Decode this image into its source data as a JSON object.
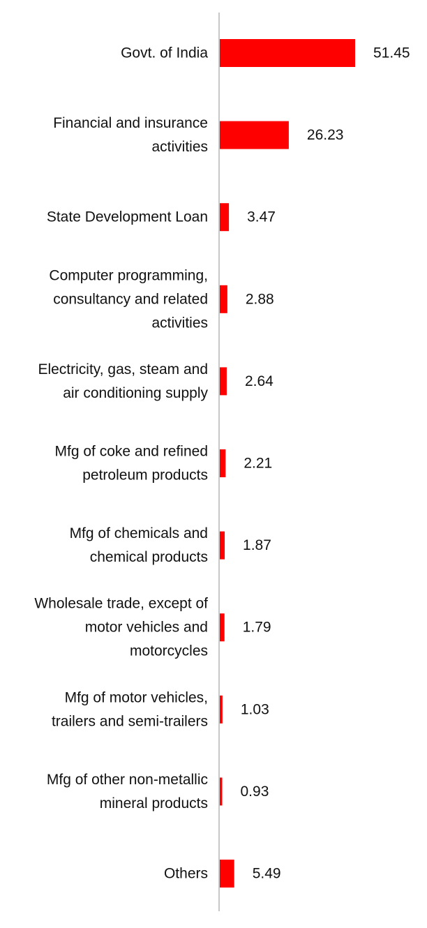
{
  "chart_data": {
    "type": "bar",
    "orientation": "horizontal",
    "categories": [
      "Govt. of India",
      "Financial and insurance activities",
      "State Development Loan",
      "Computer programming, consultancy and related activities",
      "Electricity, gas, steam and air conditioning supply",
      "Mfg of coke and refined petroleum products",
      "Mfg of chemicals and chemical products",
      "Wholesale trade, except of motor vehicles and motorcycles",
      "Mfg of motor vehicles, trailers and semi-trailers",
      "Mfg of other non-metallic mineral products",
      "Others"
    ],
    "category_lines": [
      [
        "Govt. of India"
      ],
      [
        "Financial and insurance",
        "activities"
      ],
      [
        "State Development Loan"
      ],
      [
        "Computer programming,",
        "consultancy and related",
        "activities"
      ],
      [
        "Electricity, gas, steam and",
        "air conditioning supply"
      ],
      [
        "Mfg of coke and refined",
        "petroleum products"
      ],
      [
        "Mfg of chemicals and",
        "chemical products"
      ],
      [
        "Wholesale trade, except of",
        "motor vehicles and",
        "motorcycles"
      ],
      [
        "Mfg of motor vehicles,",
        "trailers and semi-trailers"
      ],
      [
        "Mfg of other non-metallic",
        "mineral products"
      ],
      [
        "Others"
      ]
    ],
    "values": [
      51.45,
      26.23,
      3.47,
      2.88,
      2.64,
      2.21,
      1.87,
      1.79,
      1.03,
      0.93,
      5.49
    ],
    "value_labels": [
      "51.45",
      "26.23",
      "3.47",
      "2.88",
      "2.64",
      "2.21",
      "1.87",
      "1.79",
      "1.03",
      "0.93",
      "5.49"
    ],
    "bar_color": "#ff0000",
    "axis_color": "#c8c8c8",
    "xlim": [
      0,
      51.45
    ],
    "grid": false,
    "legend": "none",
    "title": "",
    "xlabel": "",
    "ylabel": ""
  }
}
